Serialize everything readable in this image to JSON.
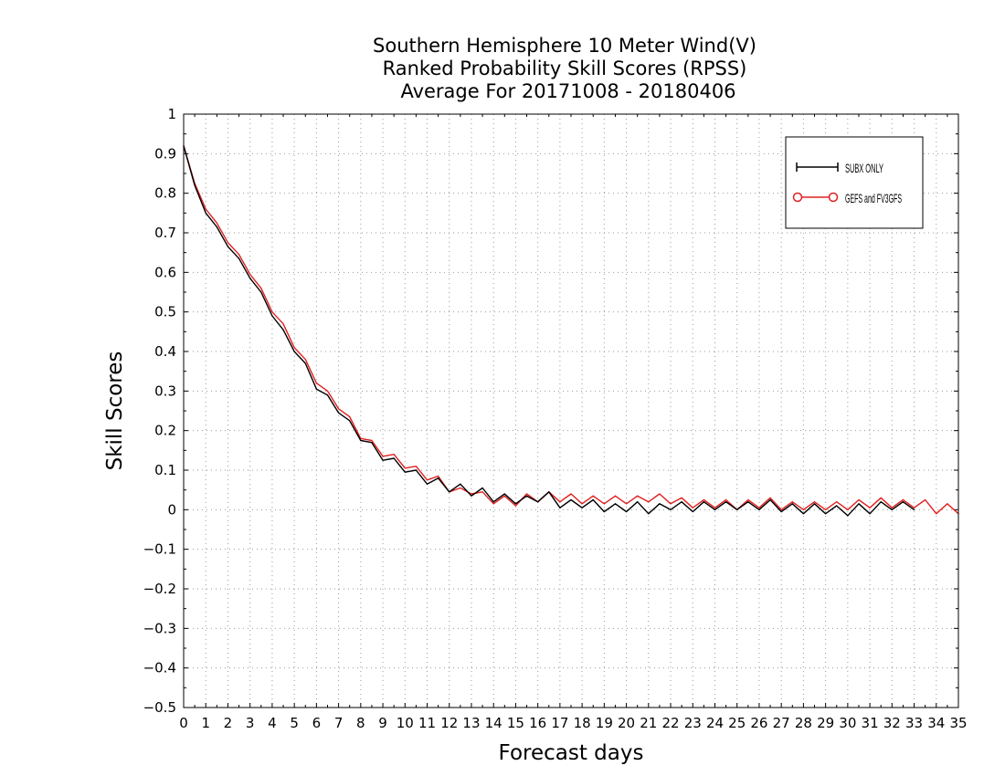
{
  "chart_data": {
    "type": "line",
    "title": [
      "Southern Hemisphere 10 Meter Wind(V)",
      "Ranked Probability Skill Scores (RPSS)",
      "Average For 20171008 - 20180406"
    ],
    "xlabel": "Forecast days",
    "ylabel": "Skill Scores",
    "xlim": [
      0,
      35
    ],
    "ylim": [
      -0.5,
      1
    ],
    "xticks": [
      "0",
      "1",
      "2",
      "3",
      "4",
      "5",
      "6",
      "7",
      "8",
      "9",
      "10",
      "11",
      "12",
      "13",
      "14",
      "15",
      "16",
      "17",
      "18",
      "19",
      "20",
      "21",
      "22",
      "23",
      "24",
      "25",
      "26",
      "27",
      "28",
      "29",
      "30",
      "31",
      "32",
      "33",
      "34",
      "35"
    ],
    "yticks": [
      "1",
      "0.9",
      "0.8",
      "0.7",
      "0.6",
      "0.5",
      "0.4",
      "0.3",
      "0.2",
      "0.1",
      "0",
      "−0.1",
      "−0.2",
      "−0.3",
      "−0.4",
      "−0.5"
    ],
    "grid": true,
    "legend_position": "top-right",
    "series": [
      {
        "name": "SUBX ONLY",
        "color": "#000000",
        "marker": "plus",
        "x": [
          0,
          0.5,
          1,
          1.5,
          2,
          2.5,
          3,
          3.5,
          4,
          4.5,
          5,
          5.5,
          6,
          6.5,
          7,
          7.5,
          8,
          8.5,
          9,
          9.5,
          10,
          10.5,
          11,
          11.5,
          12,
          12.5,
          13,
          13.5,
          14,
          14.5,
          15,
          15.5,
          16,
          16.5,
          17,
          17.5,
          18,
          18.5,
          19,
          19.5,
          20,
          20.5,
          21,
          21.5,
          22,
          22.5,
          23,
          23.5,
          24,
          24.5,
          25,
          25.5,
          26,
          26.5,
          27,
          27.5,
          28,
          28.5,
          29,
          29.5,
          30,
          30.5,
          31,
          31.5,
          32,
          32.5,
          33
        ],
        "y": [
          0.92,
          0.82,
          0.75,
          0.715,
          0.665,
          0.635,
          0.585,
          0.55,
          0.49,
          0.455,
          0.4,
          0.37,
          0.305,
          0.29,
          0.245,
          0.225,
          0.175,
          0.17,
          0.125,
          0.13,
          0.095,
          0.1,
          0.065,
          0.08,
          0.045,
          0.065,
          0.035,
          0.055,
          0.02,
          0.04,
          0.015,
          0.035,
          0.02,
          0.045,
          0.005,
          0.025,
          0.005,
          0.025,
          -0.005,
          0.015,
          -0.005,
          0.02,
          -0.01,
          0.015,
          0.0,
          0.02,
          -0.005,
          0.02,
          0.0,
          0.02,
          0.0,
          0.02,
          0.0,
          0.025,
          -0.005,
          0.015,
          -0.01,
          0.015,
          -0.01,
          0.01,
          -0.015,
          0.015,
          -0.01,
          0.02,
          0.0,
          0.02,
          0.0
        ]
      },
      {
        "name": "GEFS and FV3GFS",
        "color": "#e02020",
        "marker": "circle",
        "x": [
          0,
          0.5,
          1,
          1.5,
          2,
          2.5,
          3,
          3.5,
          4,
          4.5,
          5,
          5.5,
          6,
          6.5,
          7,
          7.5,
          8,
          8.5,
          9,
          9.5,
          10,
          10.5,
          11,
          11.5,
          12,
          12.5,
          13,
          13.5,
          14,
          14.5,
          15,
          15.5,
          16,
          16.5,
          17,
          17.5,
          18,
          18.5,
          19,
          19.5,
          20,
          20.5,
          21,
          21.5,
          22,
          22.5,
          23,
          23.5,
          24,
          24.5,
          25,
          25.5,
          26,
          26.5,
          27,
          27.5,
          28,
          28.5,
          29,
          29.5,
          30,
          30.5,
          31,
          31.5,
          32,
          32.5,
          33,
          33.5,
          34,
          34.5,
          35
        ],
        "y": [
          0.92,
          0.825,
          0.76,
          0.725,
          0.675,
          0.645,
          0.595,
          0.56,
          0.5,
          0.47,
          0.41,
          0.38,
          0.32,
          0.3,
          0.255,
          0.235,
          0.18,
          0.175,
          0.135,
          0.14,
          0.105,
          0.11,
          0.075,
          0.085,
          0.045,
          0.055,
          0.04,
          0.045,
          0.015,
          0.035,
          0.01,
          0.04,
          0.02,
          0.045,
          0.02,
          0.04,
          0.015,
          0.035,
          0.015,
          0.035,
          0.015,
          0.035,
          0.02,
          0.04,
          0.015,
          0.03,
          0.005,
          0.025,
          0.005,
          0.025,
          0.0,
          0.025,
          0.005,
          0.03,
          0.0,
          0.02,
          0.0,
          0.02,
          0.0,
          0.02,
          0.0,
          0.025,
          0.005,
          0.03,
          0.005,
          0.025,
          0.005,
          0.025,
          -0.01,
          0.015,
          -0.01
        ]
      }
    ]
  }
}
